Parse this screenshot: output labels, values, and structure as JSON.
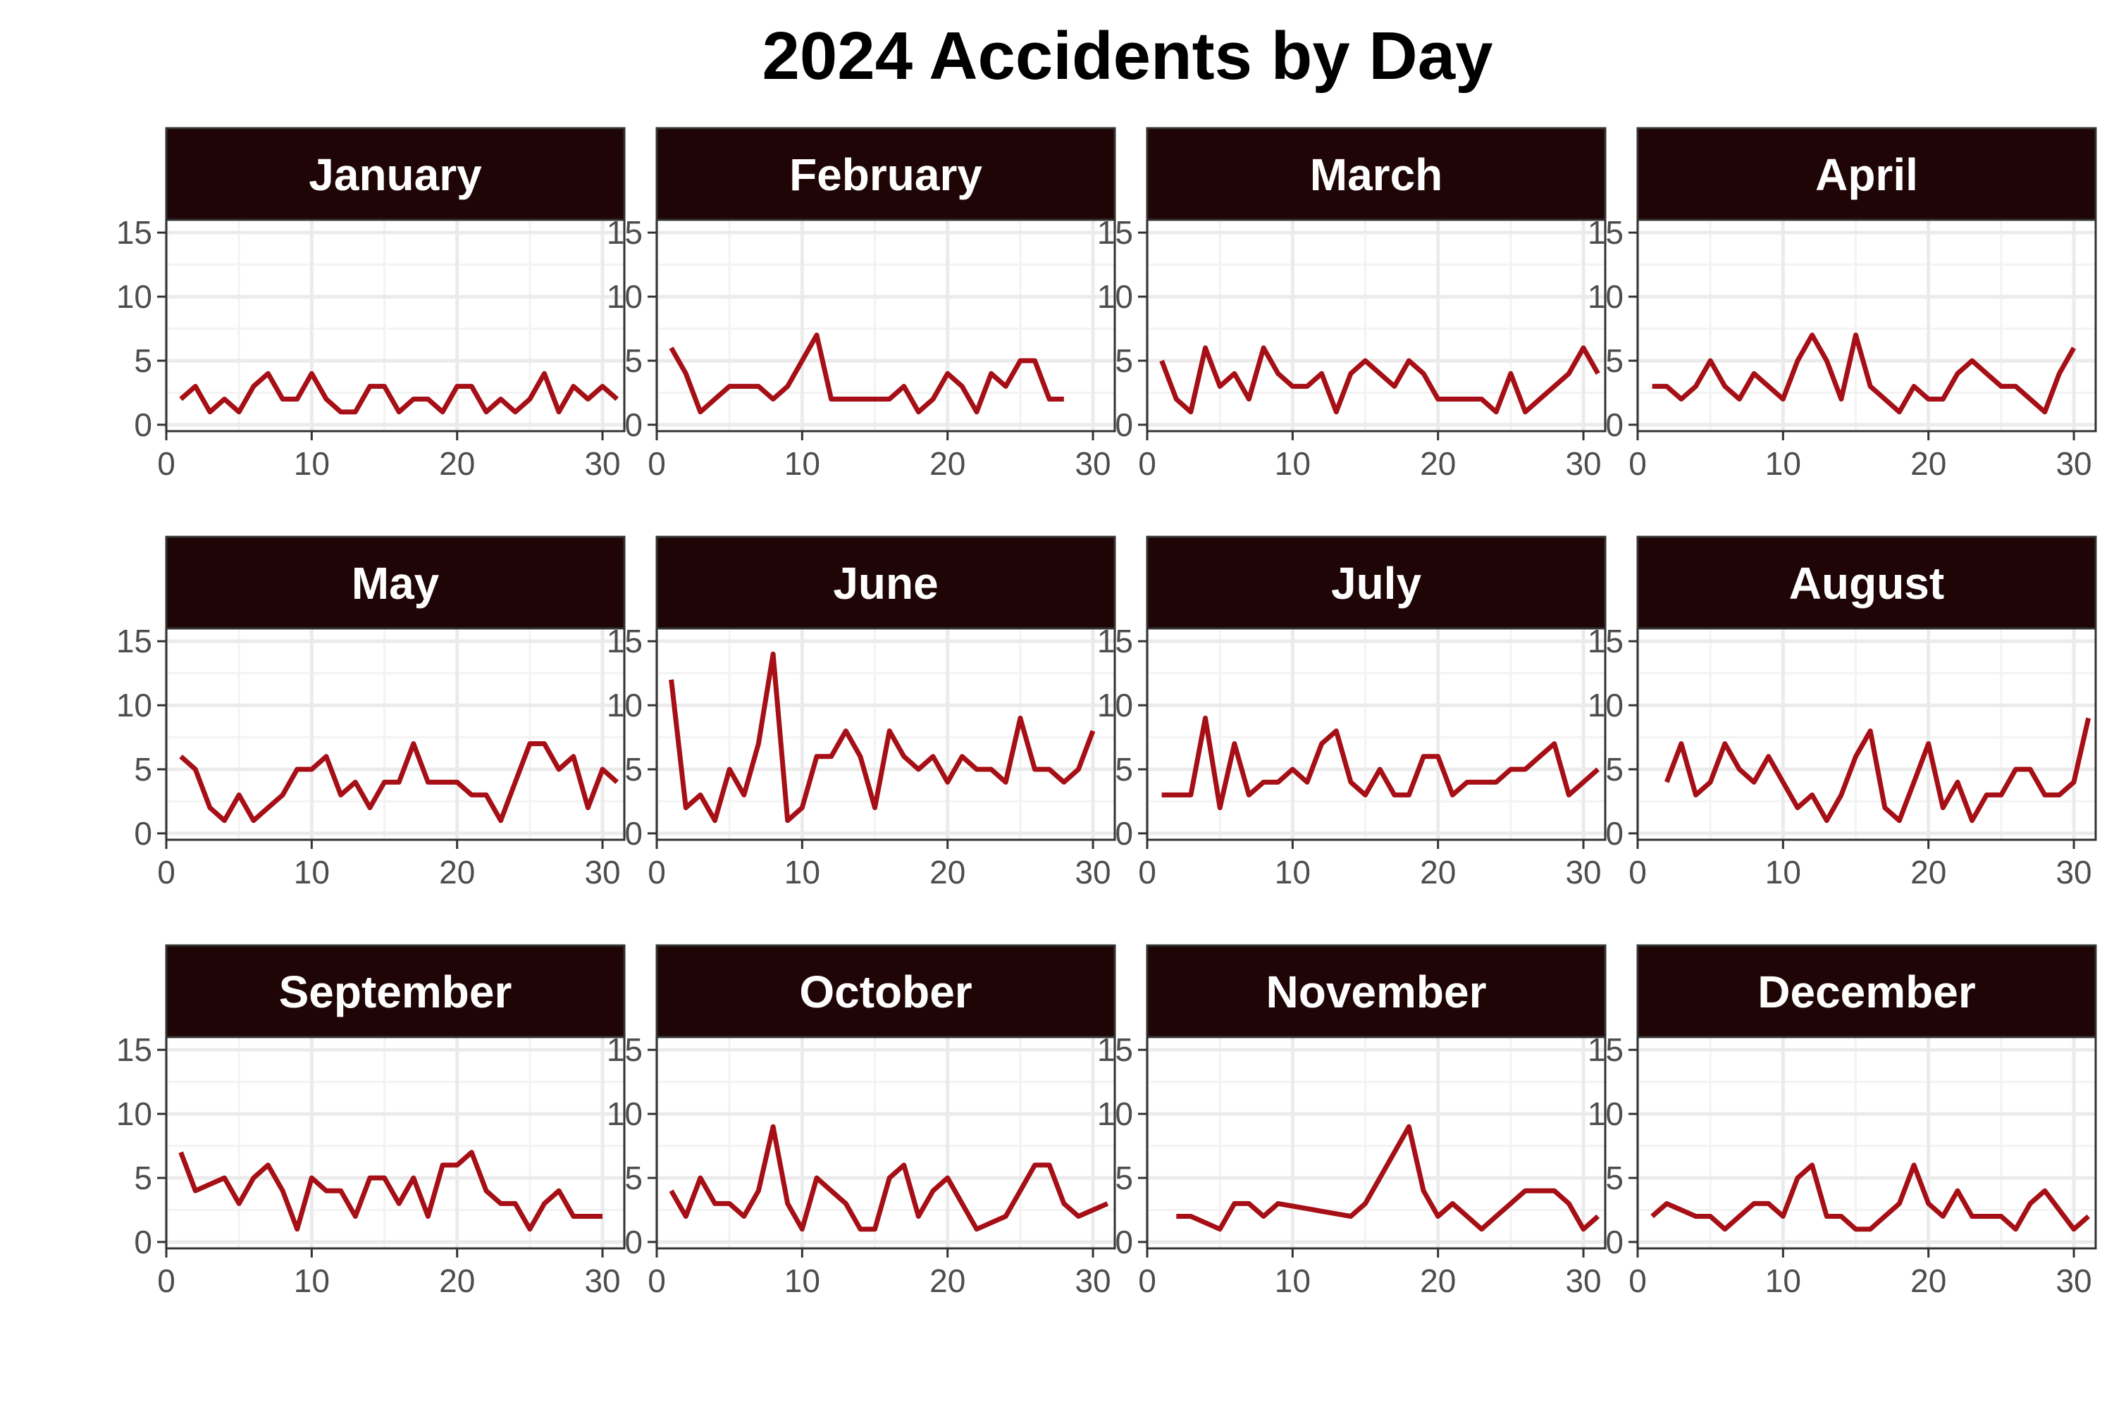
{
  "chart_data": {
    "type": "line",
    "title": "2024 Accidents by Day",
    "xlabel": "",
    "ylabel": "",
    "xlim": [
      0,
      31.5
    ],
    "ylim": [
      -0.5,
      16
    ],
    "x_ticks": [
      0,
      10,
      20,
      30
    ],
    "y_ticks": [
      0,
      5,
      10,
      15
    ],
    "grid": true,
    "colors": {
      "line": "#a50f15",
      "strip_fill": "#1f0505",
      "panel_border": "#333333",
      "grid_major": "#ebebeb",
      "grid_minor": "#f3f3f3"
    },
    "panels": [
      {
        "name": "January",
        "values": [
          2,
          3,
          1,
          2,
          1,
          3,
          4,
          2,
          2,
          4,
          2,
          1,
          1,
          3,
          3,
          1,
          2,
          2,
          1,
          3,
          3,
          1,
          2,
          1,
          2,
          4,
          1,
          3,
          2,
          3,
          2
        ]
      },
      {
        "name": "February",
        "values": [
          6,
          4,
          1,
          2,
          3,
          3,
          3,
          2,
          3,
          5,
          7,
          2,
          2,
          2,
          2,
          2,
          3,
          1,
          2,
          4,
          3,
          1,
          4,
          3,
          5,
          5,
          2,
          2
        ]
      },
      {
        "name": "March",
        "values": [
          5,
          2,
          1,
          6,
          3,
          4,
          2,
          6,
          4,
          3,
          3,
          4,
          1,
          4,
          5,
          4,
          3,
          5,
          4,
          2,
          2,
          2,
          2,
          1,
          4,
          1,
          2,
          3,
          4,
          6,
          4
        ]
      },
      {
        "name": "April",
        "values": [
          3,
          3,
          2,
          3,
          5,
          3,
          2,
          4,
          3,
          2,
          5,
          7,
          5,
          2,
          7,
          3,
          2,
          1,
          3,
          2,
          2,
          4,
          5,
          4,
          3,
          3,
          2,
          1,
          4,
          6
        ]
      },
      {
        "name": "May",
        "values": [
          6,
          5,
          2,
          1,
          3,
          1,
          2,
          3,
          5,
          5,
          6,
          3,
          4,
          2,
          4,
          4,
          7,
          4,
          4,
          4,
          3,
          3,
          1,
          4,
          7,
          7,
          5,
          6,
          2,
          5,
          4
        ]
      },
      {
        "name": "June",
        "values": [
          12,
          2,
          3,
          1,
          5,
          3,
          7,
          14,
          1,
          2,
          6,
          6,
          8,
          6,
          2,
          8,
          6,
          5,
          6,
          4,
          6,
          5,
          5,
          4,
          9,
          5,
          5,
          4,
          5,
          8
        ]
      },
      {
        "name": "July",
        "values": [
          3,
          3,
          3,
          9,
          2,
          7,
          3,
          4,
          4,
          5,
          4,
          7,
          8,
          4,
          3,
          5,
          3,
          3,
          6,
          6,
          3,
          4,
          4,
          4,
          5,
          5,
          6,
          7,
          3,
          4,
          5
        ]
      },
      {
        "name": "August",
        "values": [
          null,
          4,
          7,
          3,
          4,
          7,
          5,
          4,
          6,
          4,
          2,
          3,
          1,
          3,
          6,
          8,
          2,
          1,
          4,
          7,
          2,
          4,
          1,
          3,
          3,
          5,
          5,
          3,
          3,
          4,
          9
        ]
      },
      {
        "name": "September",
        "values": [
          7,
          4,
          4.5,
          5,
          3,
          5,
          6,
          4,
          1,
          5,
          4,
          4,
          2,
          5,
          5,
          3,
          5,
          2,
          6,
          6,
          7,
          4,
          3,
          3,
          1,
          3,
          4,
          2,
          2,
          2
        ]
      },
      {
        "name": "October",
        "values": [
          4,
          2,
          5,
          3,
          3,
          2,
          4,
          9,
          3,
          1,
          5,
          4,
          3,
          1,
          1,
          5,
          6,
          2,
          4,
          5,
          3,
          1,
          1.5,
          2,
          4,
          6,
          6,
          3,
          2,
          2.5,
          3
        ]
      },
      {
        "name": "November",
        "values": [
          null,
          2,
          2,
          1.5,
          1,
          3,
          3,
          2,
          3,
          2.8,
          2.6,
          2.4,
          2.2,
          2,
          3,
          5,
          7,
          9,
          4,
          2,
          3,
          2,
          1,
          2,
          3,
          4,
          4,
          4,
          3,
          1,
          2
        ]
      },
      {
        "name": "December",
        "values": [
          2,
          3,
          2.5,
          2,
          2,
          1,
          2,
          3,
          3,
          2,
          5,
          6,
          2,
          2,
          1,
          1,
          2,
          3,
          6,
          3,
          2,
          4,
          2,
          2,
          2,
          1,
          3,
          4,
          2.5,
          1,
          2
        ]
      }
    ]
  }
}
